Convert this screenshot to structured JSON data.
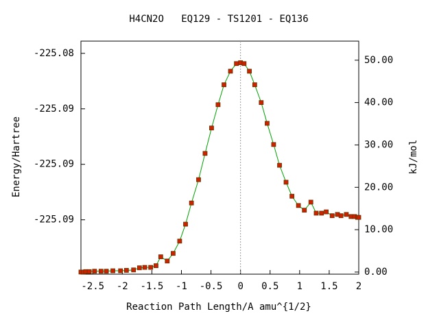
{
  "chart_data": {
    "type": "line",
    "title": "H4CN2O   EQ129 - TS1201 - EQ136",
    "x_label": "Reaction Path Length/A amu^{1/2}",
    "y_label": "Energy/Hartree",
    "y2_label": "kJ/mol",
    "x": [
      -2.7,
      -2.66,
      -2.62,
      -2.56,
      -2.47,
      -2.36,
      -2.27,
      -2.16,
      -2.03,
      -1.93,
      -1.81,
      -1.71,
      -1.62,
      -1.52,
      -1.43,
      -1.35,
      -1.24,
      -1.14,
      -1.03,
      -0.93,
      -0.83,
      -0.71,
      -0.6,
      -0.49,
      -0.38,
      -0.28,
      -0.17,
      -0.07,
      0.0,
      0.06,
      0.15,
      0.24,
      0.35,
      0.45,
      0.56,
      0.66,
      0.77,
      0.87,
      0.98,
      1.08,
      1.19,
      1.28,
      1.37,
      1.45,
      1.55,
      1.64,
      1.7,
      1.79,
      1.87,
      1.93,
      1.98,
      2.0
    ],
    "series": [
      {
        "color": "#00a000",
        "marker_color": "#cc2200",
        "marker_edge": "#663300",
        "axis": "y2",
        "values": [
          0.0,
          0.0,
          0.1,
          0.1,
          0.2,
          0.2,
          0.2,
          0.3,
          0.3,
          0.4,
          0.5,
          1.0,
          1.1,
          1.1,
          1.5,
          3.6,
          2.6,
          4.4,
          7.3,
          11.3,
          16.3,
          21.8,
          28.0,
          34.0,
          39.5,
          44.2,
          47.4,
          49.2,
          49.4,
          49.2,
          47.4,
          44.2,
          40.0,
          35.1,
          30.1,
          25.2,
          21.2,
          17.9,
          15.7,
          14.6,
          16.5,
          13.9,
          13.9,
          14.2,
          13.3,
          13.6,
          13.3,
          13.6,
          13.1,
          13.1,
          12.9,
          12.9
        ]
      }
    ],
    "xlim": [
      -2.7,
      2.0
    ],
    "xticks": [
      -2.5,
      -2,
      -1.5,
      -1,
      -0.5,
      0,
      0.5,
      1,
      1.5,
      2
    ],
    "ylim": [
      -225.0999,
      -225.0789
    ],
    "yticks": [
      {
        "value": -225.08,
        "label": "-225.08"
      },
      {
        "value": -225.085,
        "label": "-225.09"
      },
      {
        "value": -225.09,
        "label": "-225.09"
      },
      {
        "value": -225.095,
        "label": "-225.09"
      }
    ],
    "y2lim": [
      -0.5,
      54.5
    ],
    "y2ticks": [
      {
        "value": 0,
        "label": "0.00"
      },
      {
        "value": 10,
        "label": "10.00"
      },
      {
        "value": 20,
        "label": "20.00"
      },
      {
        "value": 30,
        "label": "30.00"
      },
      {
        "value": 40,
        "label": "40.00"
      },
      {
        "value": 50,
        "label": "50.00"
      }
    ],
    "grid": false
  }
}
